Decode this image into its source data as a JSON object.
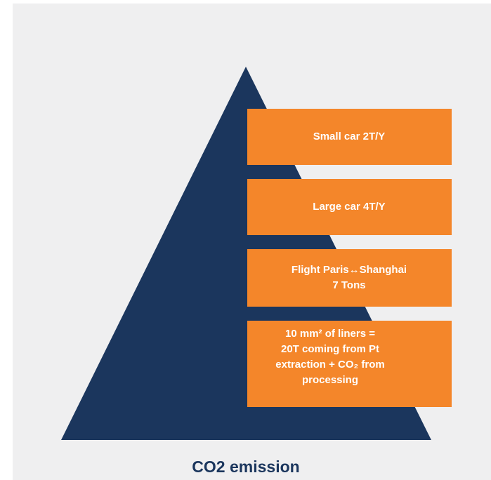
{
  "boxes": [
    {
      "lines": [
        "Small car 2T/Y"
      ]
    },
    {
      "lines": [
        "Large car 4T/Y"
      ]
    },
    {
      "lines": [
        "Flight Paris↔Shanghai",
        "7 Tons"
      ]
    },
    {
      "lines": [
        "10 mm² of liners =",
        "20T coming from Pt",
        "extraction + CO₂ from",
        "processing"
      ]
    }
  ],
  "caption": "CO2 emission"
}
